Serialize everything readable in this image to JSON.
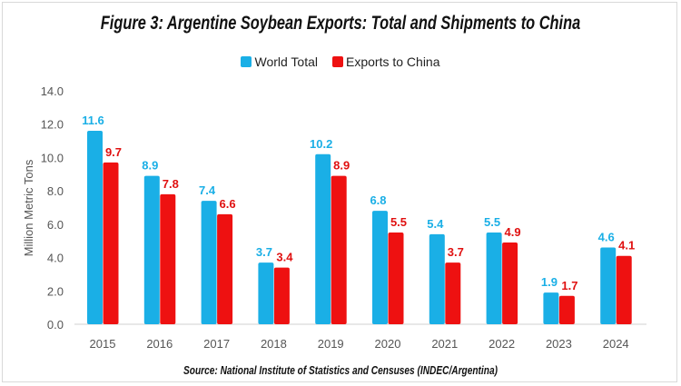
{
  "chart_data": {
    "type": "bar",
    "title": "Figure 3: Argentine Soybean Exports: Total and Shipments to China",
    "ylabel": "Million Metric Tons",
    "xlabel": "",
    "source": "Source: National Institute of Statistics and Censuses (INDEC/Argentina)",
    "categories": [
      "2015",
      "2016",
      "2017",
      "2018",
      "2019",
      "2020",
      "2021",
      "2022",
      "2023",
      "2024"
    ],
    "series": [
      {
        "name": "World Total",
        "color": "#1aafe6",
        "values": [
          11.6,
          8.9,
          7.4,
          3.7,
          10.2,
          6.8,
          5.4,
          5.5,
          1.9,
          4.6
        ]
      },
      {
        "name": "Exports to China",
        "color": "#ee1111",
        "values": [
          9.7,
          7.8,
          6.6,
          3.4,
          8.9,
          5.5,
          3.7,
          4.9,
          1.7,
          4.1
        ]
      }
    ],
    "ylim": [
      0,
      14
    ],
    "yticks": [
      "0.0",
      "2.0",
      "4.0",
      "6.0",
      "8.0",
      "10.0",
      "12.0",
      "14.0"
    ],
    "grid": false,
    "legend": "top"
  }
}
